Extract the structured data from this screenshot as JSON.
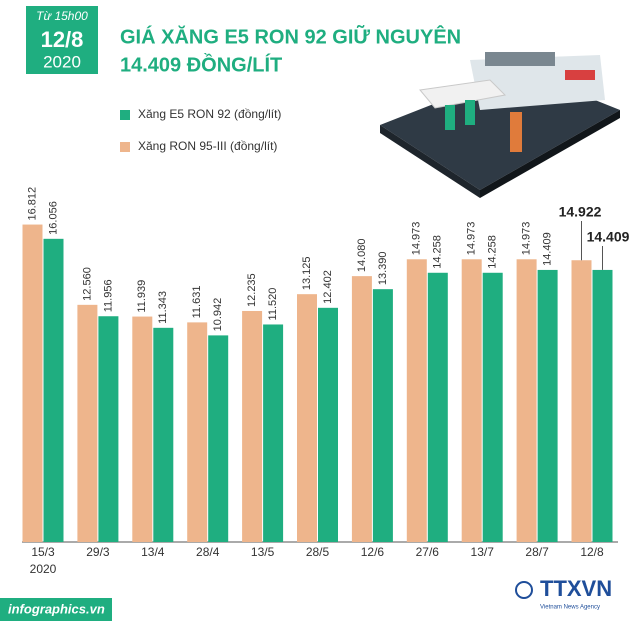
{
  "chart_data": {
    "type": "bar",
    "badge": {
      "time": "Từ 15h00",
      "date": "12/8",
      "year": "2020"
    },
    "title": "GIÁ XĂNG E5 RON 92 GIỮ NGUYÊN",
    "subtitle": "14.409 ĐỒNG/LÍT",
    "categories": [
      "15/3",
      "29/3",
      "13/4",
      "28/4",
      "13/5",
      "28/5",
      "12/6",
      "27/6",
      "13/7",
      "28/7",
      "12/8"
    ],
    "first_category_year": "2020",
    "ylim": [
      0,
      17000
    ],
    "series": [
      {
        "name": "Xăng RON 95-III (đồng/lít)",
        "color": "#eeb58c",
        "values": [
          16812,
          12560,
          11939,
          11631,
          12235,
          13125,
          14080,
          14973,
          14973,
          14973,
          14922
        ],
        "value_labels": [
          "16.812",
          "12.560",
          "11.939",
          "11.631",
          "12.235",
          "13.125",
          "14.080",
          "14.973",
          "14.973",
          "14.973",
          "14.922"
        ]
      },
      {
        "name": "Xăng E5 RON 92 (đồng/lít)",
        "color": "#1fae80",
        "values": [
          16056,
          11956,
          11343,
          10942,
          11520,
          12402,
          13390,
          14258,
          14258,
          14409,
          14409
        ],
        "value_labels": [
          "16.056",
          "11.956",
          "11.343",
          "10.942",
          "11.520",
          "12.402",
          "13.390",
          "14.258",
          "14.258",
          "14.409",
          "14.409"
        ]
      }
    ],
    "legend_order": [
      1,
      0
    ],
    "source": "infographics.vn",
    "agency": "TTXVN",
    "agency_sub": "Vietnam News Agency"
  }
}
